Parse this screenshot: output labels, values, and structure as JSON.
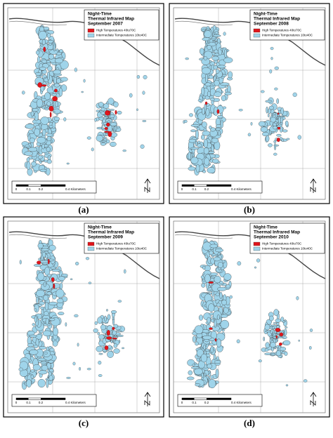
{
  "panels": [
    {
      "title": [
        "Night-Time",
        "Thermal Infrared Map",
        "September 2007"
      ],
      "legend": [
        "High Temperatures 40to70C",
        "Intermediate Temperatures 10to40C"
      ],
      "scale": [
        "0",
        "0.1",
        "0.2",
        "0.4 Kilometers"
      ],
      "caption": "(a)"
    },
    {
      "title": [
        "Night-Time",
        "Thermal Infrared Map",
        "September 2008"
      ],
      "legend": [
        "High Temperatures 40to70C",
        "Intermediate Temperatures 10to40C"
      ],
      "scale": [
        "0",
        "0.1",
        "0.2",
        "0.4 Kilometers"
      ],
      "caption": "(b)"
    },
    {
      "title": [
        "Night-Time",
        "Thermal Infrared Map",
        "September 2009"
      ],
      "legend": [
        "High Temperatures 40to70C",
        "Intermediate Temperatures 10to40C"
      ],
      "scale": [
        "0",
        "0.1",
        "0.2",
        "0.4 Kilometers"
      ],
      "caption": "(c)"
    },
    {
      "title": [
        "Night-Time",
        "Thermal Infrared Map",
        "September 2010"
      ],
      "legend": [
        "High Temperatures 40to70C",
        "Intermediate Temperatures 10to40C"
      ],
      "scale": [
        "0",
        "0.1",
        "0.2",
        "0.4 Kilometers"
      ],
      "caption": "(d)"
    }
  ]
}
